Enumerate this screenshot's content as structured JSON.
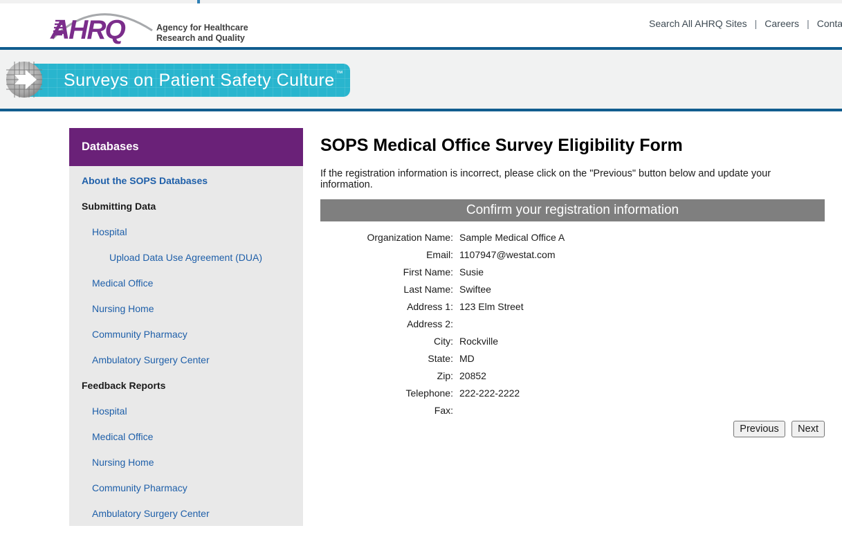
{
  "colors": {
    "accent_teal": "#29b5ce",
    "brand_purple": "#6a2178",
    "rule_blue": "#115d8f",
    "link_blue": "#1e5fa9",
    "section_bar_gray": "#7f7f7f",
    "sidebar_bg": "#e9e9e9",
    "logo_purple": "#7b2d8b"
  },
  "header": {
    "logo_acronym": "AHRQ",
    "tagline_line1": "Agency for Healthcare",
    "tagline_line2": "Research and Quality",
    "nav_items": [
      "Search All AHRQ Sites",
      "Careers",
      "Contact Us"
    ],
    "nav_separator": "|"
  },
  "banner": {
    "title": "Surveys on Patient Safety Culture",
    "trademark": "™"
  },
  "sidebar": {
    "header": "Databases",
    "items": [
      {
        "label": "About the SOPS Databases",
        "type": "link",
        "bold": true,
        "indent": 0
      },
      {
        "label": "Submitting Data",
        "type": "heading",
        "indent": 0
      },
      {
        "label": "Hospital",
        "type": "link",
        "indent": 1
      },
      {
        "label": "Upload Data Use Agreement (DUA)",
        "type": "link",
        "indent": 2
      },
      {
        "label": "Medical Office",
        "type": "link",
        "indent": 1
      },
      {
        "label": "Nursing Home",
        "type": "link",
        "indent": 1
      },
      {
        "label": "Community Pharmacy",
        "type": "link",
        "indent": 1
      },
      {
        "label": "Ambulatory Surgery Center",
        "type": "link",
        "indent": 1
      },
      {
        "label": "Feedback Reports",
        "type": "heading",
        "indent": 0
      },
      {
        "label": "Hospital",
        "type": "link",
        "indent": 1
      },
      {
        "label": "Medical Office",
        "type": "link",
        "indent": 1
      },
      {
        "label": "Nursing Home",
        "type": "link",
        "indent": 1
      },
      {
        "label": "Community Pharmacy",
        "type": "link",
        "indent": 1
      },
      {
        "label": "Ambulatory Surgery Center",
        "type": "link",
        "indent": 1
      }
    ]
  },
  "main": {
    "title": "SOPS Medical Office Survey Eligibility Form",
    "instruction": "If the registration information is incorrect, please click on the \"Previous\" button below and update your information.",
    "section_header": "Confirm your registration information",
    "fields": [
      {
        "label": "Organization Name:",
        "value": "Sample Medical Office A"
      },
      {
        "label": "Email:",
        "value": "1107947@westat.com"
      },
      {
        "label": "First Name:",
        "value": "Susie"
      },
      {
        "label": "Last Name:",
        "value": "Swiftee"
      },
      {
        "label": "Address 1:",
        "value": "123 Elm Street"
      },
      {
        "label": "Address 2:",
        "value": ""
      },
      {
        "label": "City:",
        "value": "Rockville"
      },
      {
        "label": "State:",
        "value": "MD"
      },
      {
        "label": "Zip:",
        "value": "20852"
      },
      {
        "label": "Telephone:",
        "value": "222-222-2222"
      },
      {
        "label": "Fax:",
        "value": ""
      }
    ],
    "buttons": {
      "previous": "Previous",
      "next": "Next"
    }
  }
}
